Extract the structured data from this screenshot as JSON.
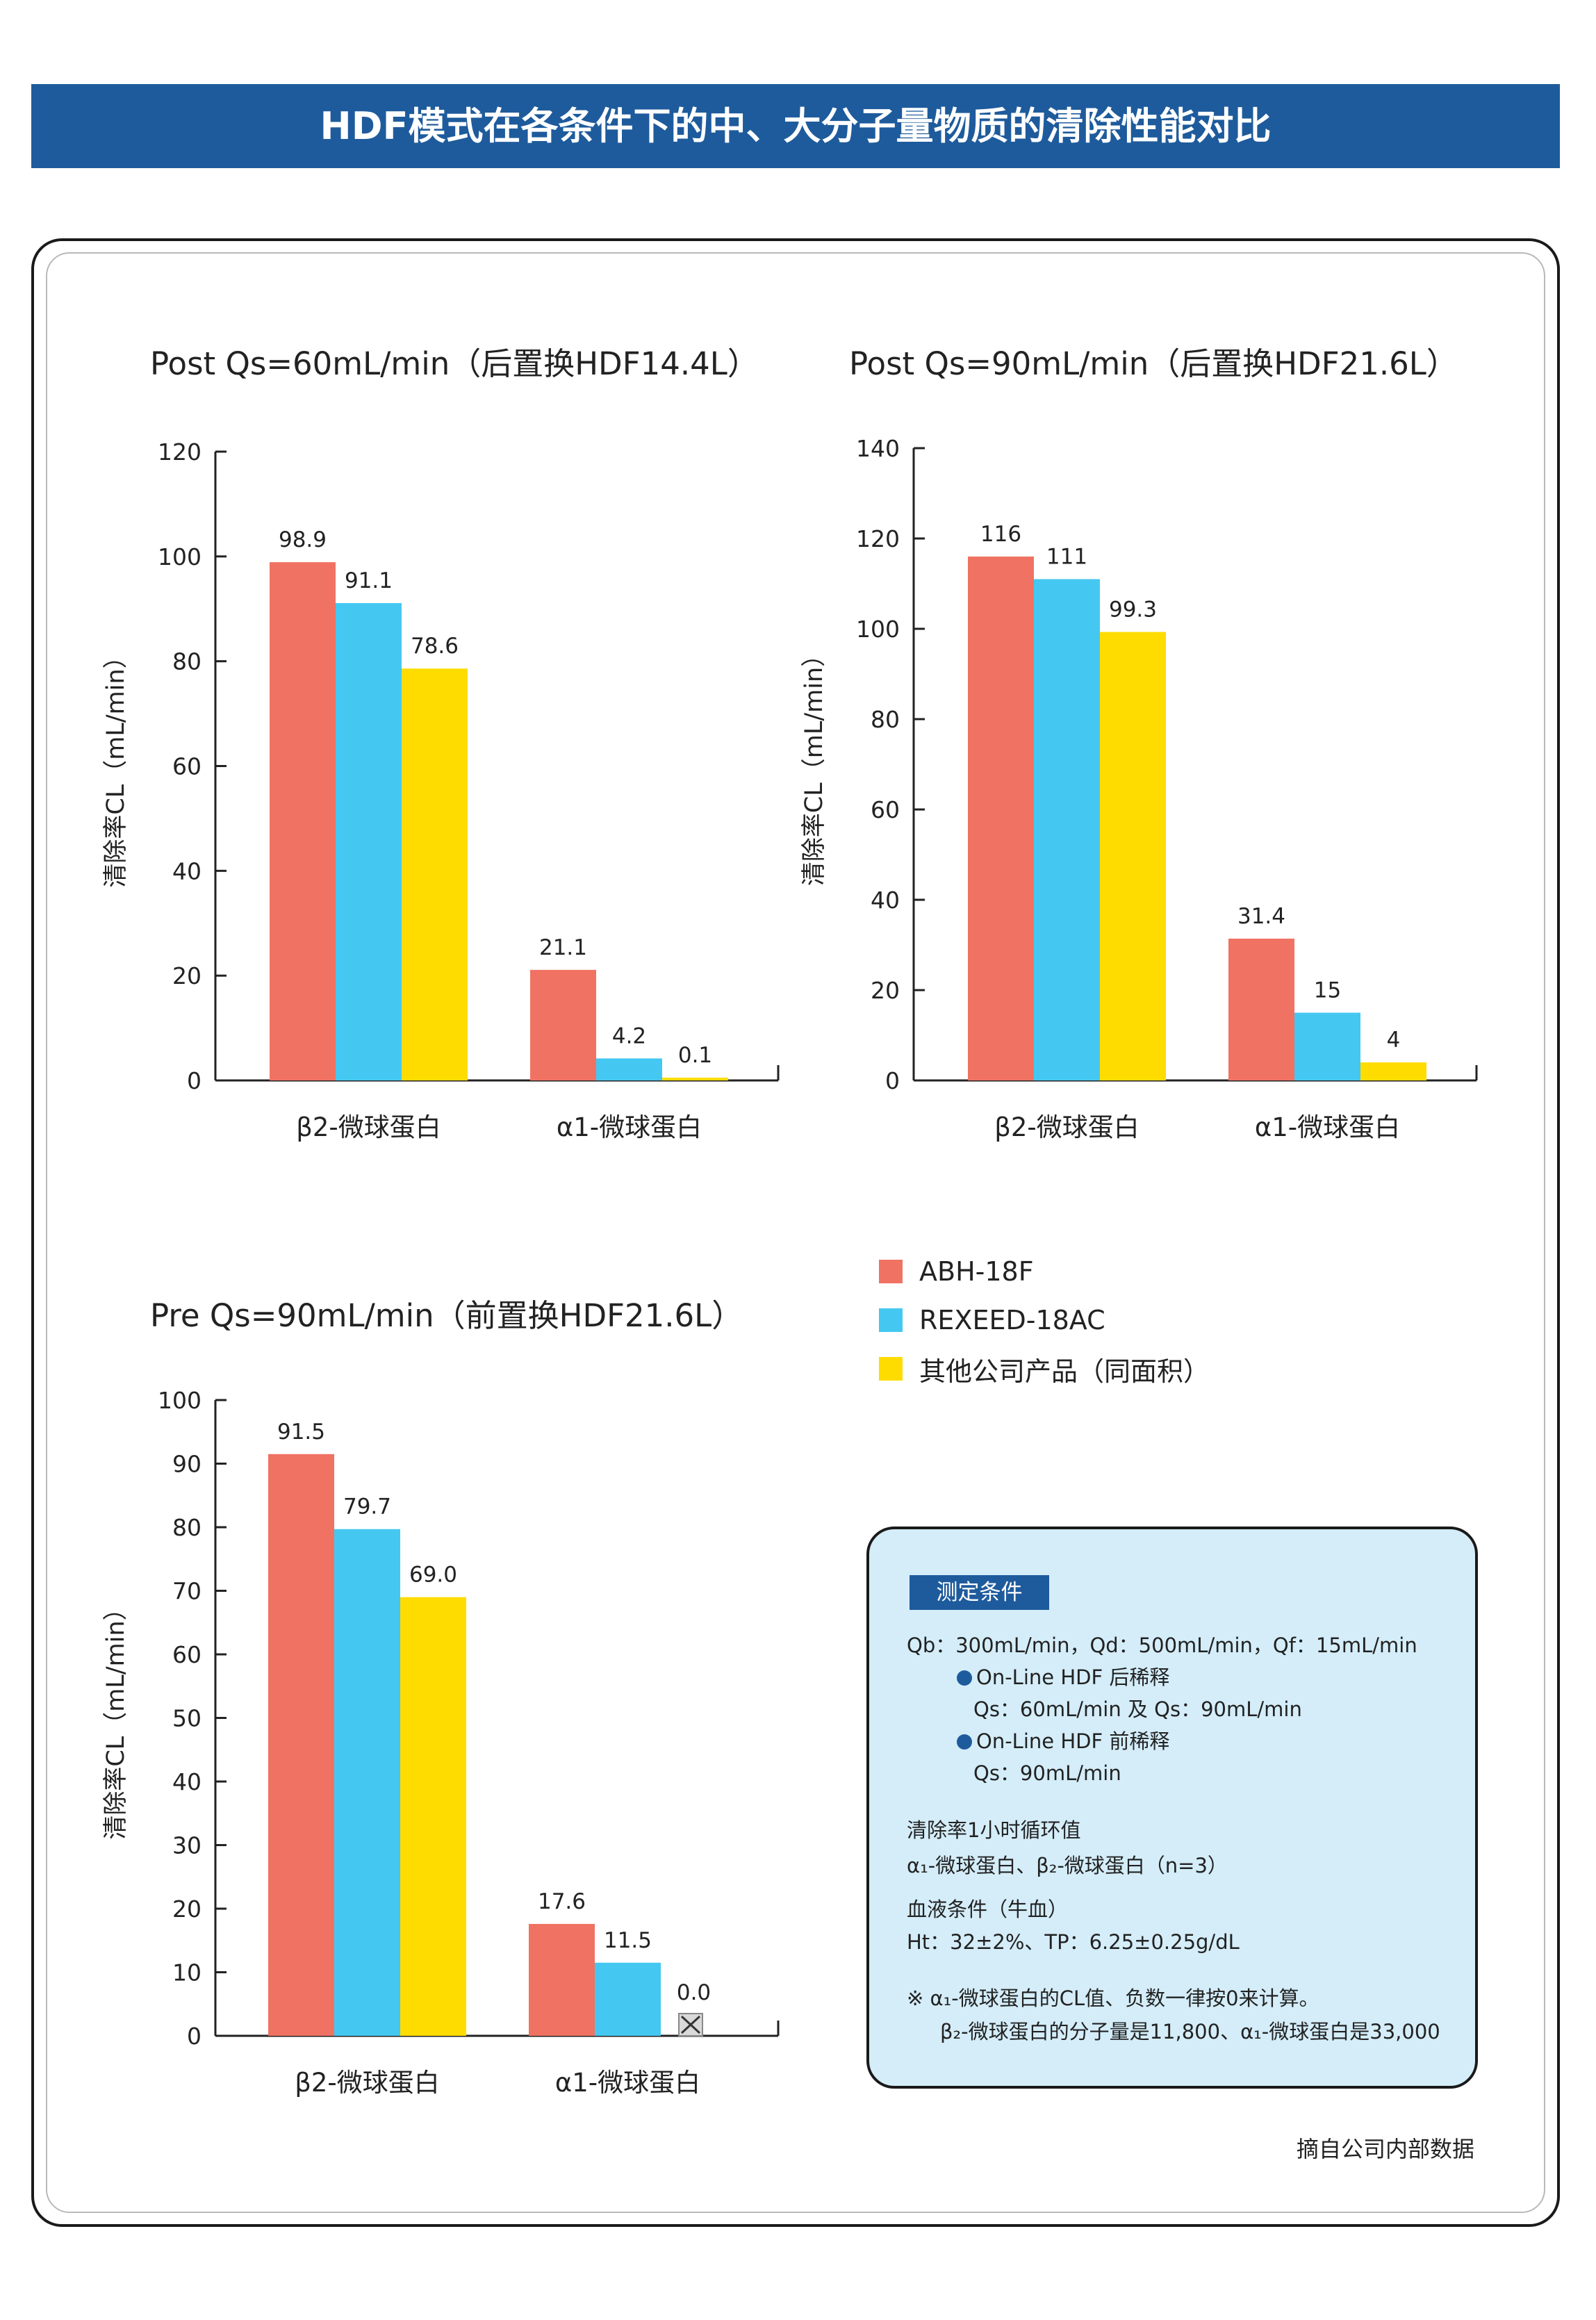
{
  "header": {
    "title": "HDF模式在各条件下的中、大分子量物质的清除性能对比"
  },
  "chart_data": [
    {
      "type": "bar",
      "title": "Post Qs=60mL/min（后置换HDF14.4L）",
      "ylabel": "清除率CL（mL/min）",
      "xlabel": "",
      "categories": [
        "β2-微球蛋白",
        "α1-微球蛋白"
      ],
      "ylim": [
        0,
        120
      ],
      "yticks": [
        0,
        20,
        40,
        60,
        80,
        100,
        120
      ],
      "series": [
        {
          "name": "ABH-18F",
          "values": [
            98.9,
            21.1
          ],
          "labels": [
            "98.9",
            "21.1"
          ]
        },
        {
          "name": "REXEED-18AC",
          "values": [
            91.1,
            4.2
          ],
          "labels": [
            "91.1",
            "4.2"
          ]
        },
        {
          "name": "其他公司产品（同面积）",
          "values": [
            78.6,
            0.1
          ],
          "labels": [
            "78.6",
            "0.1"
          ]
        }
      ]
    },
    {
      "type": "bar",
      "title": "Post Qs=90mL/min（后置换HDF21.6L）",
      "ylabel": "清除率CL（mL/min）",
      "xlabel": "",
      "categories": [
        "β2-微球蛋白",
        "α1-微球蛋白"
      ],
      "ylim": [
        0,
        140
      ],
      "yticks": [
        0,
        20,
        40,
        60,
        80,
        100,
        120,
        140
      ],
      "series": [
        {
          "name": "ABH-18F",
          "values": [
            116,
            31.4
          ],
          "labels": [
            "116",
            "31.4"
          ]
        },
        {
          "name": "REXEED-18AC",
          "values": [
            111,
            15
          ],
          "labels": [
            "111",
            "15"
          ]
        },
        {
          "name": "其他公司产品（同面积）",
          "values": [
            99.3,
            4
          ],
          "labels": [
            "99.3",
            "4"
          ]
        }
      ]
    },
    {
      "type": "bar",
      "title": "Pre Qs=90mL/min（前置换HDF21.6L）",
      "ylabel": "清除率CL（mL/min）",
      "xlabel": "",
      "categories": [
        "β2-微球蛋白",
        "α1-微球蛋白"
      ],
      "ylim": [
        0,
        100
      ],
      "yticks": [
        0,
        10,
        20,
        30,
        40,
        50,
        60,
        70,
        80,
        90,
        100
      ],
      "series": [
        {
          "name": "ABH-18F",
          "values": [
            91.5,
            17.6
          ],
          "labels": [
            "91.5",
            "17.6"
          ]
        },
        {
          "name": "REXEED-18AC",
          "values": [
            79.7,
            11.5
          ],
          "labels": [
            "79.7",
            "11.5"
          ]
        },
        {
          "name": "其他公司产品（同面积）",
          "values": [
            69.0,
            0.0
          ],
          "labels": [
            "69.0",
            "0.0"
          ]
        }
      ],
      "marker_note": "0.0 value shown with crossed-box marker"
    }
  ],
  "legend": {
    "items": [
      {
        "label": "ABH-18F",
        "color": "#f07262"
      },
      {
        "label": "REXEED-18AC",
        "color": "#44c8f1"
      },
      {
        "label": "其他公司产品（同面积）",
        "color": "#ffdc00"
      }
    ]
  },
  "conditions": {
    "tag": "测定条件",
    "line1": "Qb：300mL/min，Qd：500mL/min，Qf：15mL/min",
    "line2": "On-Line HDF 后稀释",
    "line3": "Qs：60mL/min 及 Qs：90mL/min",
    "line4": "On-Line HDF 前稀释",
    "line5": "Qs：90mL/min",
    "line6": "清除率1小时循环值",
    "line7": "α₁-微球蛋白、β₂-微球蛋白（n=3）",
    "line8": "血液条件（牛血）",
    "line9": "Ht：32±2%、TP：6.25±0.25g/dL",
    "line10": "※  α₁-微球蛋白的CL值、负数一律按0来计算。",
    "line11": "β₂-微球蛋白的分子量是11,800、α₁-微球蛋白是33,000"
  },
  "footer": {
    "source": "摘自公司内部数据"
  }
}
